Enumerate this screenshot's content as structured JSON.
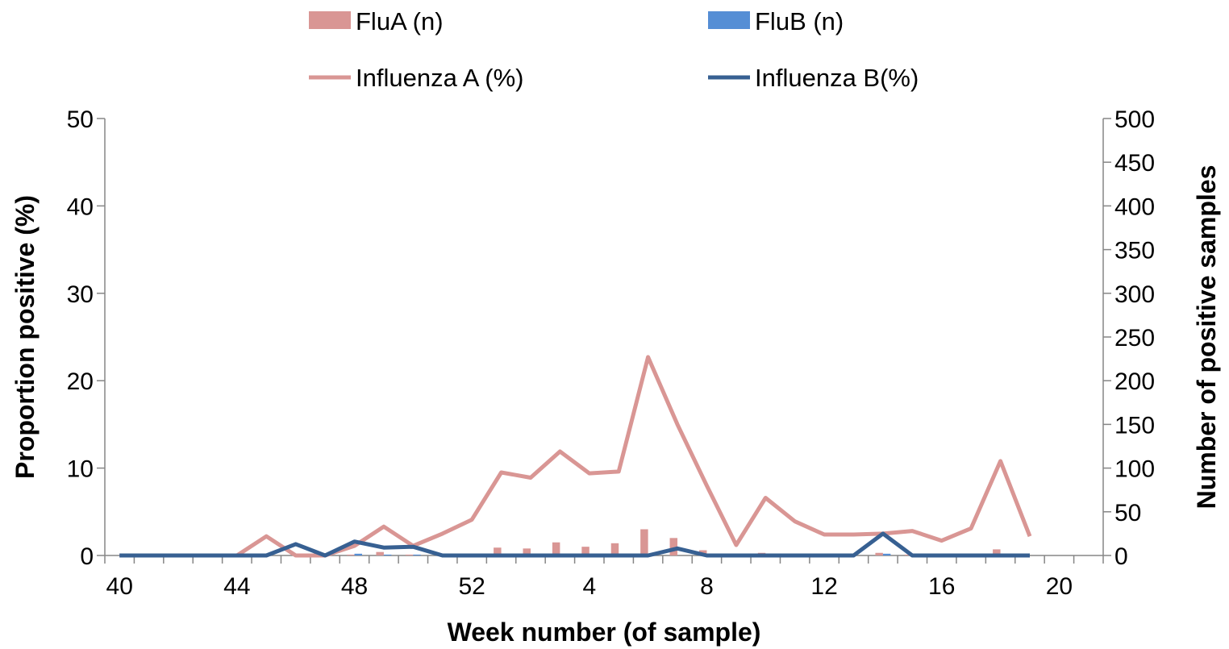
{
  "chart_data": {
    "type": "bar+line",
    "xlabel": "Week number (of sample)",
    "ylabel_left": "Proportion positive (%)",
    "ylabel_right": "Number of positive samples",
    "x_tick_labels": [
      "40",
      "44",
      "48",
      "52",
      "4",
      "8",
      "12",
      "16",
      "20"
    ],
    "y_left_ticks": [
      "0",
      "10",
      "20",
      "30",
      "40",
      "50"
    ],
    "y_right_ticks": [
      "0",
      "50",
      "100",
      "150",
      "200",
      "250",
      "300",
      "350",
      "400",
      "450",
      "500"
    ],
    "y_left_lim": [
      0,
      50
    ],
    "y_right_lim": [
      0,
      500
    ],
    "weeks": [
      40,
      41,
      42,
      43,
      44,
      45,
      46,
      47,
      48,
      49,
      50,
      51,
      52,
      53,
      1,
      2,
      3,
      4,
      5,
      6,
      7,
      8,
      9,
      10,
      11,
      12,
      13,
      14,
      15,
      16,
      17,
      18
    ],
    "legend_position": "top",
    "series": [
      {
        "name": "FluA (n)",
        "kind": "bar",
        "axis": "right",
        "color": "#d99694",
        "values": [
          0,
          0,
          0,
          0,
          0,
          0,
          0,
          0,
          1,
          4,
          1,
          0,
          0,
          9,
          8,
          15,
          10,
          14,
          30,
          20,
          6,
          1,
          3,
          1,
          1,
          1,
          3,
          1,
          1,
          1,
          7,
          1
        ]
      },
      {
        "name": "FluB (n)",
        "kind": "bar",
        "axis": "right",
        "color": "#558ed5",
        "values": [
          0,
          0,
          0,
          0,
          0,
          0,
          1,
          0,
          2,
          1,
          1,
          0,
          0,
          0,
          0,
          0,
          0,
          0,
          0,
          0,
          1,
          0,
          0,
          0,
          0,
          0,
          2,
          0,
          0,
          0,
          0,
          0
        ]
      },
      {
        "name": "Influenza A (%)",
        "kind": "line",
        "axis": "left",
        "color": "#d99694",
        "values": [
          0,
          0,
          0,
          0,
          0,
          2.2,
          0,
          0,
          1.1,
          3.3,
          1.1,
          2.5,
          4.1,
          9.5,
          8.9,
          11.9,
          9.4,
          9.6,
          22.7,
          15,
          8,
          1.2,
          6.6,
          3.9,
          2.4,
          2.4,
          2.5,
          2.8,
          1.7,
          3.1,
          10.8,
          2.2
        ]
      },
      {
        "name": "Influenza B(%)",
        "kind": "line",
        "axis": "left",
        "color": "#376092",
        "values": [
          0,
          0,
          0,
          0,
          0,
          0,
          1.3,
          0,
          1.6,
          0.9,
          1,
          0,
          0,
          0,
          0,
          0,
          0,
          0,
          0,
          0.8,
          0,
          0,
          0,
          0,
          0,
          0,
          2.5,
          0,
          0,
          0,
          0,
          0
        ]
      }
    ]
  }
}
